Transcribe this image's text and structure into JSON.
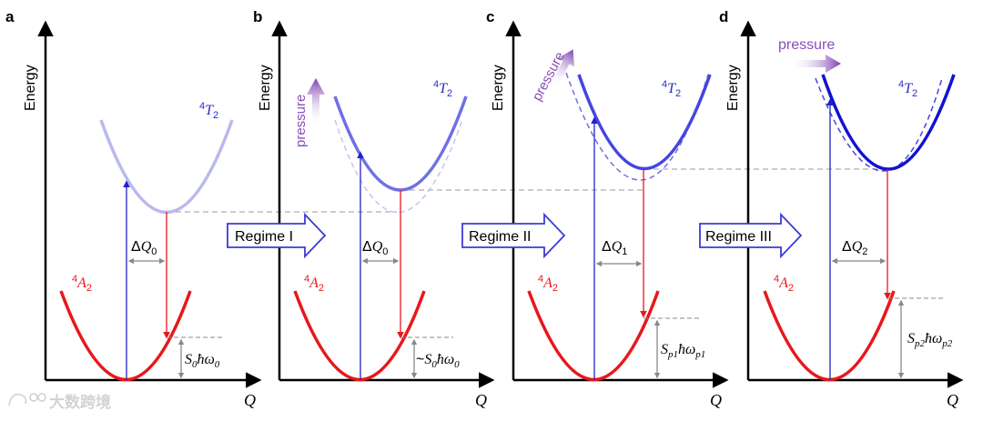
{
  "panels": [
    {
      "letter": "a",
      "y_axis_label": "Energy",
      "x_axis_label": "Q",
      "upper_state": {
        "sup": "4",
        "base": "T",
        "sub": "2"
      },
      "lower_state": {
        "sup": "4",
        "base": "A",
        "sub": "2"
      },
      "delta_q": {
        "prefix": "Δ",
        "base": "Q",
        "sub": "0"
      },
      "relaxation": {
        "prefix": "",
        "parts": [
          {
            "t": "S",
            "s": "0"
          },
          {
            "t": "ħω",
            "s": "0"
          }
        ]
      },
      "pressure": ""
    },
    {
      "letter": "b",
      "y_axis_label": "Energy",
      "x_axis_label": "Q",
      "upper_state": {
        "sup": "4",
        "base": "T",
        "sub": "2"
      },
      "lower_state": {
        "sup": "4",
        "base": "A",
        "sub": "2"
      },
      "delta_q": {
        "prefix": "Δ",
        "base": "Q",
        "sub": "0"
      },
      "relaxation": {
        "prefix": "~",
        "parts": [
          {
            "t": "S",
            "s": "0"
          },
          {
            "t": "ħω",
            "s": "0"
          }
        ]
      },
      "pressure": "pressure"
    },
    {
      "letter": "c",
      "y_axis_label": "Energy",
      "x_axis_label": "Q",
      "upper_state": {
        "sup": "4",
        "base": "T",
        "sub": "2"
      },
      "lower_state": {
        "sup": "4",
        "base": "A",
        "sub": "2"
      },
      "delta_q": {
        "prefix": "Δ",
        "base": "Q",
        "sub": "1"
      },
      "relaxation": {
        "prefix": "",
        "parts": [
          {
            "t": "S",
            "s": "p1"
          },
          {
            "t": "ħω",
            "s": "p1"
          }
        ]
      },
      "pressure": "pressure"
    },
    {
      "letter": "d",
      "y_axis_label": "Energy",
      "x_axis_label": "Q",
      "upper_state": {
        "sup": "4",
        "base": "T",
        "sub": "2"
      },
      "lower_state": {
        "sup": "4",
        "base": "A",
        "sub": "2"
      },
      "delta_q": {
        "prefix": "Δ",
        "base": "Q",
        "sub": "2"
      },
      "relaxation": {
        "prefix": "",
        "parts": [
          {
            "t": "S",
            "s": "p2"
          },
          {
            "t": "ħω",
            "s": "p2"
          }
        ]
      },
      "pressure": "pressure"
    }
  ],
  "regimes": [
    "Regime I",
    "Regime II",
    "Regime III"
  ],
  "watermark": "大数跨境",
  "colors": {
    "red": "#e8171b",
    "blue_axis": "#3b3bd6",
    "t2_a": "#b9b9ee",
    "t2_b": "#6f6fe6",
    "t2_c": "#4545e0",
    "t2_d": "#1212d0",
    "t2_label": "#2a2ac8",
    "pressure": "#8a4fb8",
    "gray": "#888888"
  }
}
